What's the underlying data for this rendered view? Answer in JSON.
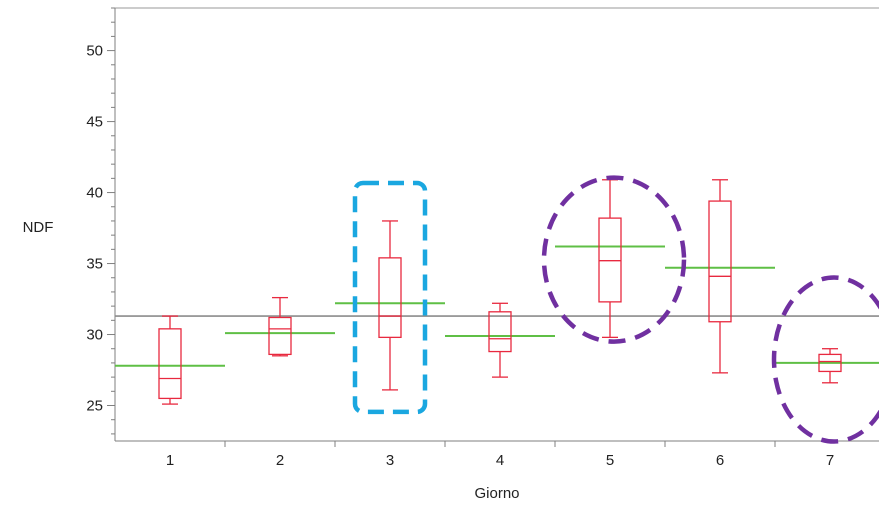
{
  "chart_data": {
    "type": "box",
    "xlabel": "Giorno",
    "ylabel": "NDF",
    "categories": [
      "1",
      "2",
      "3",
      "4",
      "5",
      "6",
      "7"
    ],
    "ylim": [
      22.5,
      53
    ],
    "yticks": [
      25,
      30,
      35,
      40,
      45,
      50
    ],
    "grand_mean": 31.3,
    "boxes": [
      {
        "category": "1",
        "whisker_low": 25.1,
        "q1": 25.5,
        "median": 26.9,
        "q3": 30.4,
        "whisker_high": 31.3,
        "mean": 27.8
      },
      {
        "category": "2",
        "whisker_low": 28.5,
        "q1": 28.6,
        "median": 30.4,
        "q3": 31.2,
        "whisker_high": 32.6,
        "mean": 30.1
      },
      {
        "category": "3",
        "whisker_low": 26.1,
        "q1": 29.8,
        "median": 31.3,
        "q3": 35.4,
        "whisker_high": 38.0,
        "mean": 32.2
      },
      {
        "category": "4",
        "whisker_low": 27.0,
        "q1": 28.8,
        "median": 29.7,
        "q3": 31.6,
        "whisker_high": 32.2,
        "mean": 29.9
      },
      {
        "category": "5",
        "whisker_low": 29.8,
        "q1": 32.3,
        "median": 35.2,
        "q3": 38.2,
        "whisker_high": 40.9,
        "mean": 36.2
      },
      {
        "category": "6",
        "whisker_low": 27.3,
        "q1": 30.9,
        "median": 34.1,
        "q3": 39.4,
        "whisker_high": 40.9,
        "mean": 34.7
      },
      {
        "category": "7",
        "whisker_low": 26.6,
        "q1": 27.4,
        "median": 28.1,
        "q3": 28.6,
        "whisker_high": 29.0,
        "mean": 28.0
      }
    ],
    "highlights": [
      {
        "category": "3",
        "shape": "rounded-rect",
        "color": "#1aa7e0"
      },
      {
        "category": "5",
        "shape": "circle",
        "color": "#7030a0"
      },
      {
        "category": "7",
        "shape": "circle",
        "color": "#7030a0"
      }
    ],
    "colors": {
      "box": "#e8293f",
      "mean_line": "#5fbf45",
      "grand_mean_line": "#8c8c8c",
      "axis": "#7f7f7f"
    }
  }
}
